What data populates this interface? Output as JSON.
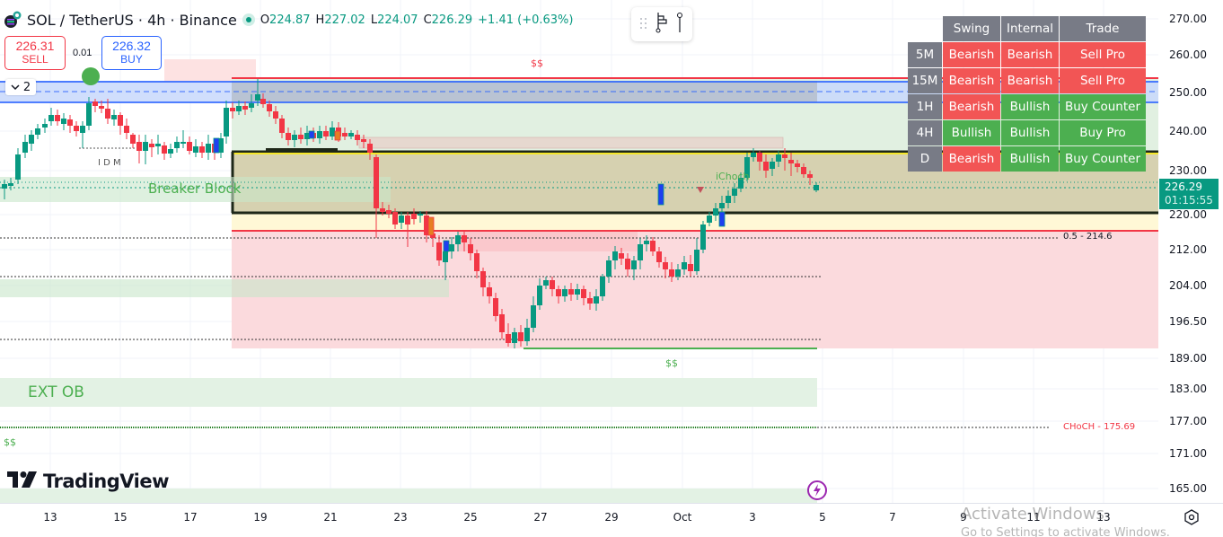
{
  "header": {
    "symbol": "SOL / TetherUS · 4h · Binance",
    "ohlc": {
      "open_label": "O",
      "open": "224.87",
      "high_label": "H",
      "high": "227.02",
      "low_label": "L",
      "low": "224.07",
      "close_label": "C",
      "close": "226.29",
      "change": "+1.41 (+0.63%)"
    }
  },
  "trade_buttons": {
    "sell_price": "226.31",
    "sell_label": "SELL",
    "spread": "0.01",
    "buy_price": "226.32",
    "buy_label": "BUY"
  },
  "indicator_collapse": {
    "count": "2"
  },
  "float_toolbar": {
    "icons": [
      "drag-handle-icon",
      "long-position-icon",
      "pin-icon"
    ]
  },
  "smc_table": {
    "headers": [
      "Swing",
      "Internal",
      "Trade"
    ],
    "rows": [
      {
        "tf": "5M",
        "swing": "Bearish",
        "internal": "Bearish",
        "trade": "Sell Pro"
      },
      {
        "tf": "15M",
        "swing": "Bearish",
        "internal": "Bearish",
        "trade": "Sell Pro"
      },
      {
        "tf": "1H",
        "swing": "Bearish",
        "internal": "Bullish",
        "trade": "Buy Counter"
      },
      {
        "tf": "4H",
        "swing": "Bullish",
        "internal": "Bullish",
        "trade": "Buy Pro"
      },
      {
        "tf": "D",
        "swing": "Bearish",
        "internal": "Bullish",
        "trade": "Buy Counter"
      }
    ],
    "colors": {
      "header": "#787b86",
      "bearish": "#f25555",
      "bullish": "#4caf50"
    }
  },
  "chart_labels": {
    "ss_top": "$$",
    "ss_bottom": "$$",
    "ss_left": "$$",
    "idm": "I D M",
    "breaker_block": "Breaker Block",
    "ichoch": "iChoch",
    "fib": "0.5 - 214.6",
    "choch": "CHoCH - 175.69",
    "ext_ob": "EXT OB"
  },
  "price_axis": {
    "ticks": [
      "270.00",
      "260.00",
      "250.00",
      "240.00",
      "230.00",
      "220.00",
      "212.00",
      "204.00",
      "196.50",
      "189.00",
      "183.00",
      "177.00",
      "171.00",
      "165.00"
    ],
    "last_price": "226.29",
    "countdown": "01:15:55",
    "last_color": "#089981"
  },
  "time_axis": {
    "ticks": [
      "13",
      "15",
      "17",
      "19",
      "21",
      "23",
      "25",
      "27",
      "29",
      "Oct",
      "3",
      "5",
      "7",
      "9",
      "11",
      "13"
    ]
  },
  "branding": {
    "logo_text": "TradingView"
  },
  "os_watermark": {
    "title": "Activate Windows",
    "subtitle": "Go to Settings to activate Windows."
  }
}
